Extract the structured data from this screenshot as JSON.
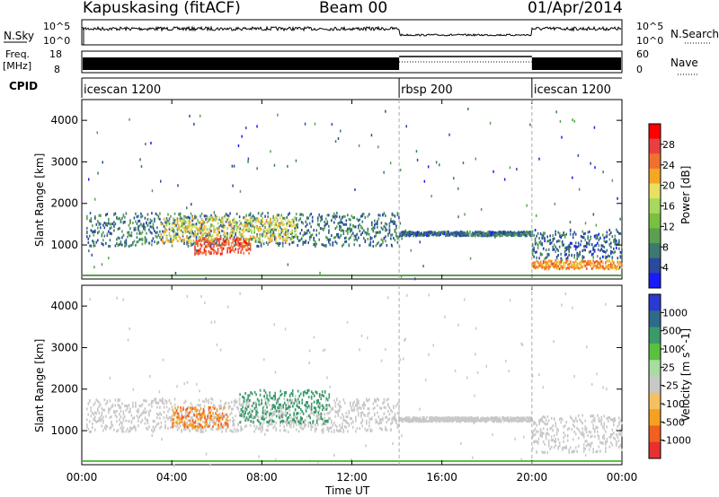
{
  "header": {
    "station": "Kapuskasing (fitACF)",
    "beam": "Beam 00",
    "date": "01/Apr/2014"
  },
  "strip_labels": {
    "nsky": "N.Sky",
    "nsky_tick_hi": "10^5",
    "nsky_tick_lo": "10^0",
    "nsearch": "N.Search",
    "nsearch_tick_hi": "10^5",
    "nsearch_tick_lo": "10^0",
    "freq": "Freq.",
    "freq_unit": "[MHz]",
    "freq_tick_hi": "18",
    "freq_tick_lo": "8",
    "nave": "Nave",
    "nave_tick_hi": "60",
    "nave_tick_lo": "0",
    "cpid": "CPID"
  },
  "cpid_segments": [
    {
      "name": "icescan 1200",
      "start_hour": 0,
      "end_hour": 14.1
    },
    {
      "name": "rbsp 200",
      "start_hour": 14.1,
      "end_hour": 20.0
    },
    {
      "name": "icescan 1200",
      "start_hour": 20.0,
      "end_hour": 24
    }
  ],
  "x_axis": {
    "label": "Time UT",
    "ticks": [
      "00:00",
      "04:00",
      "08:00",
      "12:00",
      "16:00",
      "20:00",
      "00:00"
    ]
  },
  "power_panel": {
    "ylabel": "Slant Range [km]",
    "yticks": [
      "1000",
      "2000",
      "3000",
      "4000"
    ],
    "colorbar_label": "Power [dB]",
    "colorbar_ticks": [
      "4",
      "8",
      "12",
      "16",
      "20",
      "24",
      "28"
    ],
    "colors": [
      "#1a1aff",
      "#2a4aa0",
      "#3a7a70",
      "#5aa050",
      "#7ac040",
      "#a8d860",
      "#e8e060",
      "#f5a623",
      "#f07030",
      "#e84040",
      "#ff0000"
    ]
  },
  "velocity_panel": {
    "ylabel": "Slant Range [km]",
    "yticks": [
      "1000",
      "2000",
      "3000",
      "4000"
    ],
    "colorbar_label": "Velocity [m s^-1]",
    "colorbar_ticks": [
      "1000",
      "500",
      "100",
      "25",
      "-25",
      "-100",
      "-500",
      "-1000"
    ],
    "colors": [
      "#2a3ad0",
      "#2e6a8a",
      "#3a9a6a",
      "#5ac040",
      "#a8dca0",
      "#c8c8c8",
      "#f5c060",
      "#f5a020",
      "#f06020",
      "#e83030"
    ]
  },
  "chart_data": [
    {
      "type": "heatmap",
      "title": "Power",
      "xlabel": "Time UT",
      "ylabel": "Slant Range [km]",
      "xlim_hours": [
        0,
        24
      ],
      "ylim_km": [
        180,
        4500
      ],
      "colorbar": {
        "label": "Power [dB]",
        "range": [
          0,
          30
        ],
        "ticks": [
          4,
          8,
          12,
          16,
          20,
          24,
          28
        ]
      },
      "regions": [
        {
          "t0": 0.2,
          "t1": 14.1,
          "r0": 1000,
          "r1": 1800,
          "value": 6
        },
        {
          "t0": 3.5,
          "t1": 9.5,
          "r0": 1100,
          "r1": 1700,
          "value": 18
        },
        {
          "t0": 5.0,
          "t1": 7.5,
          "r0": 800,
          "r1": 1200,
          "value": 26
        },
        {
          "t0": 14.1,
          "t1": 20.0,
          "r0": 1250,
          "r1": 1350,
          "value": 5
        },
        {
          "t0": 20.0,
          "t1": 24,
          "r0": 700,
          "r1": 1400,
          "value": 5
        },
        {
          "t0": 20.0,
          "t1": 24,
          "r0": 450,
          "r1": 650,
          "value": 22
        }
      ]
    },
    {
      "type": "heatmap",
      "title": "Velocity",
      "xlabel": "Time UT",
      "ylabel": "Slant Range [km]",
      "xlim_hours": [
        0,
        24
      ],
      "ylim_km": [
        180,
        4500
      ],
      "colorbar": {
        "label": "Velocity [m s^-1]",
        "ticks": [
          1000,
          500,
          100,
          25,
          -25,
          -100,
          -500,
          -1000
        ]
      },
      "regions": [
        {
          "t0": 0.2,
          "t1": 14.1,
          "r0": 1000,
          "r1": 1800,
          "value": 0
        },
        {
          "t0": 4.0,
          "t1": 6.5,
          "r0": 1100,
          "r1": 1600,
          "value": -300
        },
        {
          "t0": 7.0,
          "t1": 11.0,
          "r0": 1200,
          "r1": 2000,
          "value": 80
        },
        {
          "t0": 14.1,
          "t1": 20.0,
          "r0": 1250,
          "r1": 1350,
          "value": 0
        },
        {
          "t0": 20.0,
          "t1": 24,
          "r0": 500,
          "r1": 1400,
          "value": 0
        }
      ]
    }
  ]
}
